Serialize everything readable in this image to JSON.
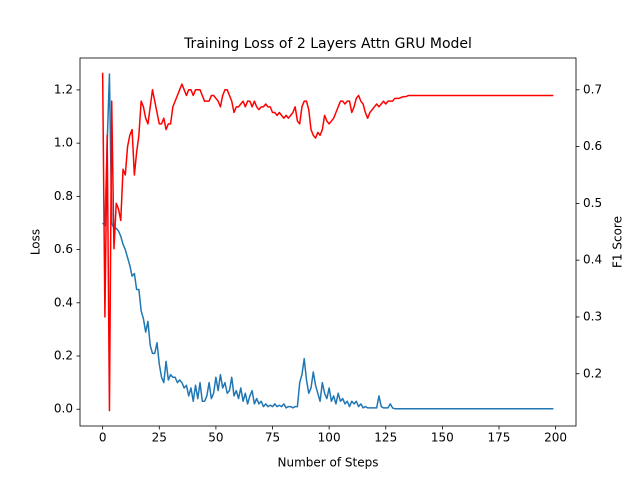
{
  "chart_data": {
    "type": "line",
    "title": "Training Loss of 2 Layers Attn GRU Model",
    "xlabel": "Number of Steps",
    "ylabel": "Loss",
    "y2label": "F1 Score",
    "x": [
      0,
      1,
      2,
      3,
      4,
      5,
      6,
      7,
      8,
      9,
      10,
      11,
      12,
      13,
      14,
      15,
      16,
      17,
      18,
      19,
      20,
      21,
      22,
      23,
      24,
      25,
      26,
      27,
      28,
      29,
      30,
      31,
      32,
      33,
      34,
      35,
      36,
      37,
      38,
      39,
      40,
      41,
      42,
      43,
      44,
      45,
      46,
      47,
      48,
      49,
      50,
      51,
      52,
      53,
      54,
      55,
      56,
      57,
      58,
      59,
      60,
      61,
      62,
      63,
      64,
      65,
      66,
      67,
      68,
      69,
      70,
      71,
      72,
      73,
      74,
      75,
      76,
      77,
      78,
      79,
      80,
      81,
      82,
      83,
      84,
      85,
      86,
      87,
      88,
      89,
      90,
      91,
      92,
      93,
      94,
      95,
      96,
      97,
      98,
      99,
      100,
      101,
      102,
      103,
      104,
      105,
      106,
      107,
      108,
      109,
      110,
      111,
      112,
      113,
      114,
      115,
      116,
      117,
      118,
      119,
      120,
      121,
      122,
      123,
      124,
      125,
      126,
      127,
      128,
      129,
      130,
      131,
      132,
      133,
      134,
      135,
      136,
      137,
      138,
      139,
      140,
      141,
      142,
      143,
      144,
      145,
      146,
      147,
      148,
      149,
      150,
      151,
      152,
      153,
      154,
      155,
      156,
      157,
      158,
      159,
      160,
      161,
      162,
      163,
      164,
      165,
      166,
      167,
      168,
      169,
      170,
      171,
      172,
      173,
      174,
      175,
      176,
      177,
      178,
      179,
      180,
      181,
      182,
      183,
      184,
      185,
      186,
      187,
      188,
      189,
      190,
      191,
      192,
      193,
      194,
      195,
      196,
      197,
      198,
      199
    ],
    "series": [
      {
        "color": "#1f77b4",
        "values": [
          0.7,
          0.69,
          1.0,
          1.26,
          0.7,
          0.68,
          0.68,
          0.67,
          0.65,
          0.62,
          0.6,
          0.57,
          0.54,
          0.5,
          0.51,
          0.45,
          0.45,
          0.37,
          0.34,
          0.29,
          0.33,
          0.24,
          0.21,
          0.21,
          0.25,
          0.17,
          0.12,
          0.1,
          0.18,
          0.11,
          0.13,
          0.12,
          0.12,
          0.1,
          0.11,
          0.1,
          0.08,
          0.09,
          0.05,
          0.08,
          0.03,
          0.09,
          0.04,
          0.1,
          0.03,
          0.03,
          0.05,
          0.1,
          0.04,
          0.06,
          0.12,
          0.07,
          0.13,
          0.08,
          0.1,
          0.06,
          0.07,
          0.12,
          0.05,
          0.07,
          0.04,
          0.08,
          0.03,
          0.06,
          0.02,
          0.05,
          0.07,
          0.02,
          0.04,
          0.02,
          0.03,
          0.01,
          0.02,
          0.01,
          0.015,
          0.01,
          0.02,
          0.01,
          0.015,
          0.01,
          0.02,
          0.005,
          0.01,
          0.01,
          0.005,
          0.01,
          0.01,
          0.1,
          0.13,
          0.19,
          0.11,
          0.06,
          0.08,
          0.14,
          0.09,
          0.06,
          0.03,
          0.1,
          0.06,
          0.04,
          0.08,
          0.03,
          0.05,
          0.02,
          0.06,
          0.03,
          0.04,
          0.02,
          0.03,
          0.01,
          0.03,
          0.02,
          0.03,
          0.01,
          0.02,
          0.005,
          0.01,
          0.005,
          0.005,
          0.005,
          0.005,
          0.005,
          0.05,
          0.01,
          0.005,
          0.005,
          0.005,
          0.02,
          0.005,
          0.002,
          0.002,
          0.002,
          0.002,
          0.002,
          0.002,
          0.002,
          0.002,
          0.002,
          0.002,
          0.002,
          0.002,
          0.002,
          0.002,
          0.002,
          0.002,
          0.002,
          0.002,
          0.002,
          0.002,
          0.002,
          0.002,
          0.002,
          0.002,
          0.002,
          0.002,
          0.002,
          0.002,
          0.002,
          0.002,
          0.002,
          0.002,
          0.002,
          0.002,
          0.002,
          0.002,
          0.002,
          0.002,
          0.002,
          0.002,
          0.002,
          0.002,
          0.002,
          0.002,
          0.002,
          0.002,
          0.002,
          0.002,
          0.002,
          0.002,
          0.002,
          0.002,
          0.002,
          0.002,
          0.002,
          0.002,
          0.002,
          0.002,
          0.002,
          0.002,
          0.002,
          0.002,
          0.002,
          0.002,
          0.002,
          0.002,
          0.002,
          0.002,
          0.002,
          0.002,
          0.002
        ]
      },
      {
        "color": "#ff0000",
        "axis": "y2",
        "values": [
          0.73,
          0.3,
          0.62,
          0.135,
          0.68,
          0.42,
          0.5,
          0.49,
          0.47,
          0.56,
          0.55,
          0.6,
          0.62,
          0.63,
          0.55,
          0.59,
          0.62,
          0.68,
          0.67,
          0.65,
          0.64,
          0.67,
          0.7,
          0.68,
          0.66,
          0.64,
          0.64,
          0.65,
          0.63,
          0.64,
          0.64,
          0.67,
          0.68,
          0.69,
          0.7,
          0.71,
          0.7,
          0.69,
          0.7,
          0.7,
          0.69,
          0.7,
          0.7,
          0.7,
          0.69,
          0.68,
          0.68,
          0.68,
          0.69,
          0.69,
          0.685,
          0.68,
          0.67,
          0.69,
          0.7,
          0.7,
          0.69,
          0.68,
          0.66,
          0.67,
          0.67,
          0.675,
          0.68,
          0.67,
          0.68,
          0.68,
          0.67,
          0.68,
          0.67,
          0.665,
          0.67,
          0.67,
          0.675,
          0.67,
          0.67,
          0.66,
          0.66,
          0.655,
          0.66,
          0.655,
          0.65,
          0.655,
          0.65,
          0.655,
          0.66,
          0.67,
          0.645,
          0.64,
          0.67,
          0.68,
          0.68,
          0.665,
          0.63,
          0.62,
          0.615,
          0.625,
          0.62,
          0.63,
          0.655,
          0.645,
          0.64,
          0.645,
          0.65,
          0.66,
          0.67,
          0.68,
          0.68,
          0.675,
          0.68,
          0.68,
          0.66,
          0.67,
          0.685,
          0.69,
          0.68,
          0.675,
          0.66,
          0.65,
          0.66,
          0.665,
          0.67,
          0.675,
          0.67,
          0.675,
          0.68,
          0.675,
          0.68,
          0.68,
          0.68,
          0.685,
          0.685,
          0.685,
          0.687,
          0.688,
          0.688,
          0.69,
          0.69,
          0.69,
          0.69,
          0.69,
          0.69,
          0.69,
          0.69,
          0.69,
          0.69,
          0.69,
          0.69,
          0.69,
          0.69,
          0.69,
          0.69,
          0.69,
          0.69,
          0.69,
          0.69,
          0.69,
          0.69,
          0.69,
          0.69,
          0.69,
          0.69,
          0.69,
          0.69,
          0.69,
          0.69,
          0.69,
          0.69,
          0.69,
          0.69,
          0.69,
          0.69,
          0.69,
          0.69,
          0.69,
          0.69,
          0.69,
          0.69,
          0.69,
          0.69,
          0.69,
          0.69,
          0.69,
          0.69,
          0.69,
          0.69,
          0.69,
          0.69,
          0.69,
          0.69,
          0.69,
          0.69,
          0.69,
          0.69,
          0.69,
          0.69,
          0.69,
          0.69,
          0.69,
          0.69,
          0.69
        ]
      }
    ],
    "xlim": [
      -10,
      209
    ],
    "xticks": [
      0,
      25,
      50,
      75,
      100,
      125,
      150,
      175,
      200
    ],
    "ylim": [
      -0.063,
      1.32
    ],
    "yticks": [
      {
        "value": 0,
        "label": "0.0"
      },
      0.2,
      0.4,
      0.6,
      0.8,
      {
        "value": 1,
        "label": "1.0"
      },
      1.2
    ],
    "y2lim": [
      0.108,
      0.756
    ],
    "y2ticks": [
      0.2,
      0.3,
      0.4,
      0.5,
      0.6,
      0.7
    ],
    "grid": false
  }
}
